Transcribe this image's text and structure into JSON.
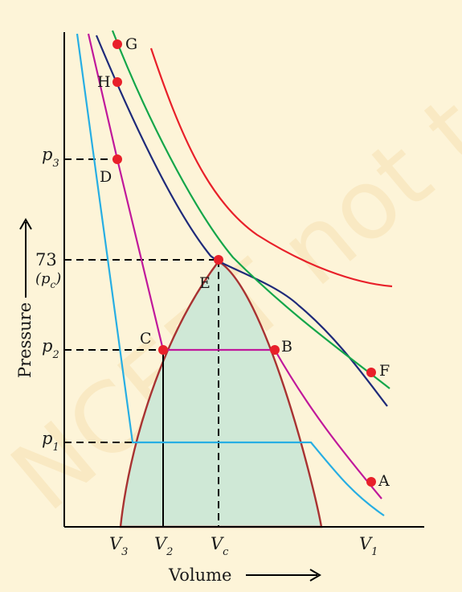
{
  "diagram": {
    "watermark": "NCERT not to be republished",
    "axes": {
      "x_label": "Volume",
      "y_label": "Pressure"
    },
    "pressure_ticks": [
      {
        "main": "p",
        "sub": "3"
      },
      {
        "main": "73",
        "sub": ""
      },
      {
        "main": "(p",
        "sub": "c",
        "close": ")"
      },
      {
        "main": "p",
        "sub": "2"
      },
      {
        "main": "p",
        "sub": "1"
      }
    ],
    "volume_ticks": [
      {
        "main": "V",
        "sub": "3"
      },
      {
        "main": "V",
        "sub": "2"
      },
      {
        "main": "V",
        "sub": "c"
      },
      {
        "main": "V",
        "sub": "1"
      }
    ],
    "points": {
      "A": "A",
      "B": "B",
      "C": "C",
      "D": "D",
      "E": "E",
      "F": "F",
      "G": "G",
      "H": "H"
    },
    "colors": {
      "background": "#fdf4d8",
      "dome_fill": "#cfe8d6",
      "dome_edge": "#a83232",
      "isotherm_low": "#27aee3",
      "isotherm_mid": "#c0189b",
      "isotherm_critical": "#1f2a7a",
      "isotherm_high": "#14a64a",
      "isotherm_highest": "#e8202a",
      "point": "#e8202a"
    }
  }
}
